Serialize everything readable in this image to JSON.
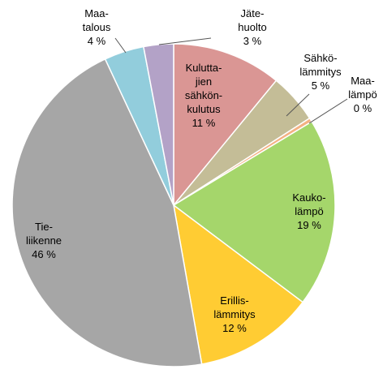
{
  "chart_data": {
    "type": "pie",
    "start_angle_deg": 0,
    "direction": "clockwise",
    "slices": [
      {
        "label": [
          "Kulutta-",
          "jien",
          "sähkön-",
          "kulutus"
        ],
        "value": 11,
        "value_label": "11 %",
        "color": "#da9694"
      },
      {
        "label": [
          "Sähkö-",
          "lämmitys"
        ],
        "value": 5,
        "value_label": "5 %",
        "color": "#c4bd97"
      },
      {
        "label": [
          "Maa-",
          "lämpö"
        ],
        "value": 0.4,
        "value_label": "0 %",
        "color": "#f4b183"
      },
      {
        "label": [
          "Kauko-",
          "lämpö"
        ],
        "value": 19,
        "value_label": "19 %",
        "color": "#a5d66b"
      },
      {
        "label": [
          "Erillis-",
          "lämmitys"
        ],
        "value": 12,
        "value_label": "12 %",
        "color": "#ffcc33"
      },
      {
        "label": [
          "Tie-",
          "liikenne"
        ],
        "value": 46,
        "value_label": "46 %",
        "color": "#a6a6a6"
      },
      {
        "label": [
          "Maa-",
          "talous"
        ],
        "value": 4,
        "value_label": "4 %",
        "color": "#92cddc"
      },
      {
        "label": [
          "Jäte-",
          "huolto"
        ],
        "value": 3,
        "value_label": "3 %",
        "color": "#b3a2c7"
      }
    ]
  }
}
